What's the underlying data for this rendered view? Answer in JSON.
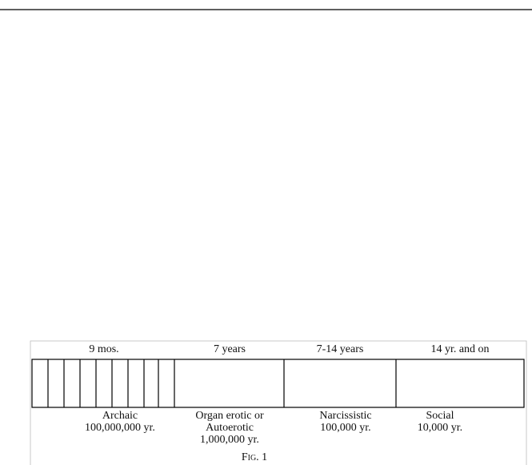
{
  "figure": {
    "periods": [
      {
        "span": "9 mos.",
        "labels": [
          "Archaic",
          "100,000,000 yr."
        ]
      },
      {
        "span": "7 years",
        "labels": [
          "Organ erotic or",
          "Autoerotic",
          "1,000,000 yr."
        ]
      },
      {
        "span": "7-14 years",
        "labels": [
          "Narcissistic",
          "100,000 yr."
        ]
      },
      {
        "span": "14 yr. and on",
        "labels": [
          "Social",
          "10,000 yr."
        ]
      }
    ],
    "caption": "Fig. 1"
  }
}
